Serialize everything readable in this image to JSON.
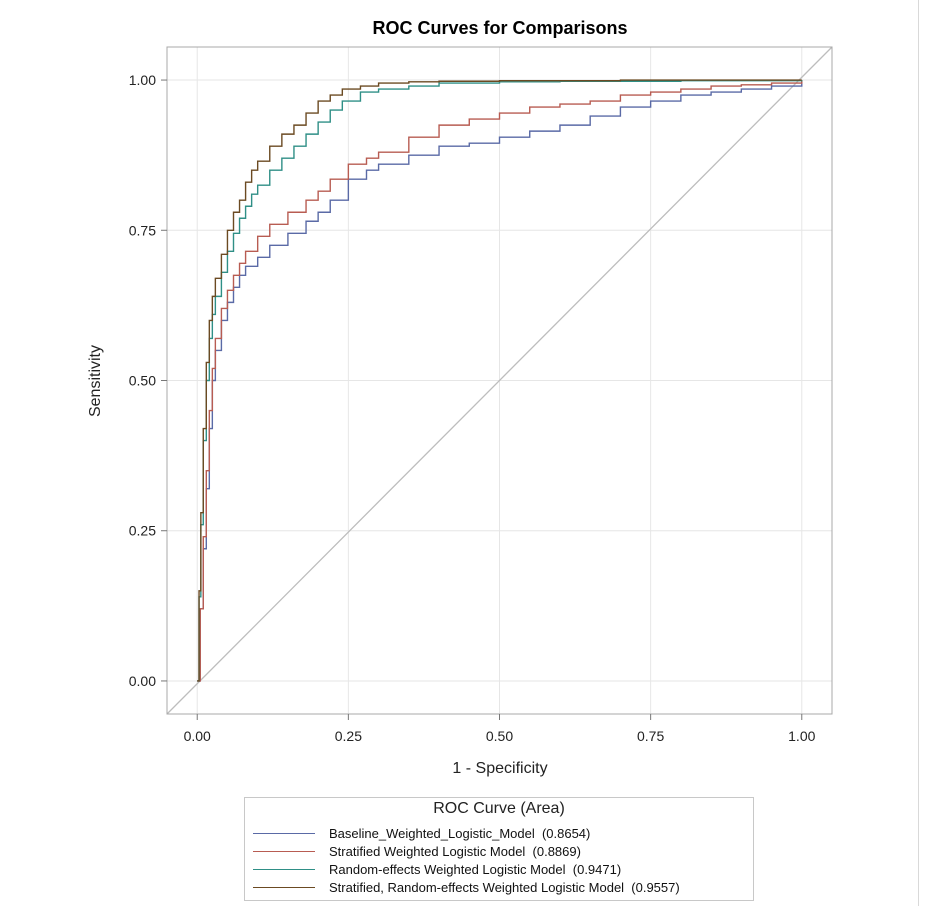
{
  "chart_data": {
    "type": "line",
    "title": "ROC Curves for Comparisons",
    "xlabel": "1 - Specificity",
    "ylabel": "Sensitivity",
    "xlim": [
      -0.05,
      1.05
    ],
    "ylim": [
      -0.055,
      1.055
    ],
    "xticks": [
      "0.00",
      "0.25",
      "0.50",
      "0.75",
      "1.00"
    ],
    "yticks": [
      "0.00",
      "0.25",
      "0.50",
      "0.75",
      "1.00"
    ],
    "grid": true,
    "legend_title": "ROC Curve (Area)",
    "legend_position": "bottom",
    "reference_line": {
      "x": [
        -0.05,
        1.05
      ],
      "y": [
        -0.055,
        1.055
      ],
      "color": "#bdbdbd"
    },
    "series": [
      {
        "name": "Baseline_Weighted_Logistic_Model  (0.8654)",
        "color": "#5a6aa6",
        "x": [
          0,
          0.005,
          0.01,
          0.015,
          0.02,
          0.025,
          0.03,
          0.04,
          0.05,
          0.06,
          0.07,
          0.08,
          0.1,
          0.12,
          0.15,
          0.18,
          0.2,
          0.22,
          0.25,
          0.28,
          0.3,
          0.35,
          0.4,
          0.45,
          0.5,
          0.55,
          0.6,
          0.65,
          0.7,
          0.75,
          0.8,
          0.85,
          0.9,
          0.95,
          1.0
        ],
        "y": [
          0,
          0.12,
          0.22,
          0.32,
          0.42,
          0.5,
          0.55,
          0.6,
          0.63,
          0.655,
          0.675,
          0.69,
          0.705,
          0.725,
          0.745,
          0.765,
          0.78,
          0.8,
          0.835,
          0.85,
          0.86,
          0.875,
          0.89,
          0.895,
          0.905,
          0.915,
          0.925,
          0.94,
          0.955,
          0.965,
          0.975,
          0.98,
          0.985,
          0.99,
          1.0
        ]
      },
      {
        "name": "Stratified Weighted Logistic Model  (0.8869)",
        "color": "#b85c52",
        "x": [
          0,
          0.005,
          0.01,
          0.015,
          0.02,
          0.025,
          0.03,
          0.04,
          0.05,
          0.06,
          0.07,
          0.08,
          0.1,
          0.12,
          0.15,
          0.18,
          0.2,
          0.22,
          0.25,
          0.28,
          0.3,
          0.35,
          0.4,
          0.45,
          0.5,
          0.55,
          0.6,
          0.65,
          0.7,
          0.75,
          0.8,
          0.85,
          0.9,
          0.95,
          1.0
        ],
        "y": [
          0,
          0.12,
          0.24,
          0.35,
          0.45,
          0.52,
          0.57,
          0.62,
          0.65,
          0.675,
          0.695,
          0.715,
          0.74,
          0.76,
          0.78,
          0.8,
          0.815,
          0.835,
          0.86,
          0.87,
          0.88,
          0.905,
          0.925,
          0.935,
          0.945,
          0.955,
          0.96,
          0.965,
          0.975,
          0.98,
          0.985,
          0.99,
          0.992,
          0.995,
          1.0
        ]
      },
      {
        "name": "Random-effects Weighted Logistic Model  (0.9471)",
        "color": "#2f8f86",
        "x": [
          0,
          0.003,
          0.006,
          0.01,
          0.015,
          0.02,
          0.025,
          0.03,
          0.04,
          0.05,
          0.06,
          0.07,
          0.08,
          0.09,
          0.1,
          0.12,
          0.14,
          0.16,
          0.18,
          0.2,
          0.22,
          0.24,
          0.27,
          0.3,
          0.35,
          0.4,
          0.5,
          0.6,
          0.7,
          0.8,
          0.9,
          1.0
        ],
        "y": [
          0,
          0.14,
          0.26,
          0.4,
          0.5,
          0.57,
          0.61,
          0.64,
          0.68,
          0.715,
          0.745,
          0.77,
          0.79,
          0.81,
          0.825,
          0.85,
          0.87,
          0.89,
          0.91,
          0.93,
          0.95,
          0.965,
          0.98,
          0.985,
          0.99,
          0.995,
          0.997,
          0.998,
          0.998,
          0.999,
          0.999,
          1.0
        ]
      },
      {
        "name": "Stratified, Random-effects Weighted Logistic Model  (0.9557)",
        "color": "#6b4a22",
        "x": [
          0,
          0.003,
          0.006,
          0.01,
          0.015,
          0.02,
          0.025,
          0.03,
          0.04,
          0.05,
          0.06,
          0.07,
          0.08,
          0.09,
          0.1,
          0.12,
          0.14,
          0.16,
          0.18,
          0.2,
          0.22,
          0.24,
          0.27,
          0.3,
          0.35,
          0.4,
          0.5,
          0.6,
          0.7,
          0.8,
          0.9,
          1.0
        ],
        "y": [
          0,
          0.15,
          0.28,
          0.42,
          0.53,
          0.6,
          0.64,
          0.67,
          0.71,
          0.75,
          0.78,
          0.8,
          0.83,
          0.85,
          0.865,
          0.89,
          0.91,
          0.925,
          0.945,
          0.965,
          0.975,
          0.985,
          0.99,
          0.995,
          0.997,
          0.998,
          0.999,
          0.999,
          1.0,
          1.0,
          1.0,
          1.0
        ]
      }
    ]
  }
}
